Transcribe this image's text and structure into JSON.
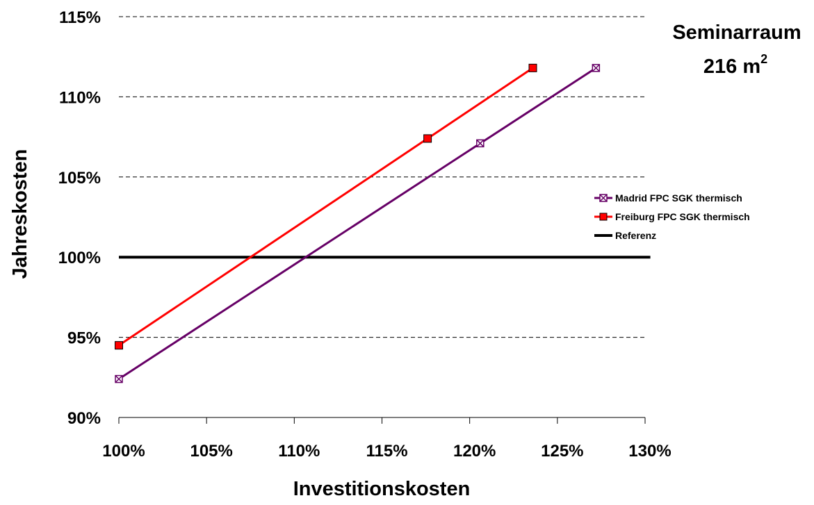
{
  "chart_data": {
    "type": "line",
    "title": "",
    "xlabel": "Investitionskosten",
    "ylabel": "Jahreskosten",
    "xlim": [
      1.0,
      1.3
    ],
    "ylim": [
      0.9,
      1.15
    ],
    "x_tick_values": [
      1.0,
      1.05,
      1.1,
      1.15,
      1.2,
      1.25,
      1.3
    ],
    "x_tick_labels": [
      "100%",
      "105%",
      "110%",
      "115%",
      "120%",
      "125%",
      "130%"
    ],
    "y_tick_values": [
      0.9,
      0.95,
      1.0,
      1.05,
      1.1,
      1.15
    ],
    "y_tick_labels": [
      "90%",
      "95%",
      "100%",
      "105%",
      "110%",
      "115%"
    ],
    "grid": "horizontal dashed",
    "legend_position": "right",
    "annotation": {
      "line1": "Seminarraum",
      "line2_text": "216 m",
      "line2_sup": "2"
    },
    "series": [
      {
        "name": "Madrid FPC SGK thermisch",
        "color": "#660066",
        "marker": "x-square",
        "x": [
          1.0,
          1.206,
          1.272
        ],
        "y": [
          0.924,
          1.071,
          1.118
        ]
      },
      {
        "name": "Freiburg FPC SGK thermisch",
        "color": "#ff0000",
        "marker": "square",
        "x": [
          1.0,
          1.176,
          1.236
        ],
        "y": [
          0.945,
          1.074,
          1.118
        ]
      },
      {
        "name": "Referenz",
        "color": "#000000",
        "marker": "none",
        "x": [
          1.0,
          1.303
        ],
        "y": [
          1.0,
          1.0
        ]
      }
    ]
  }
}
